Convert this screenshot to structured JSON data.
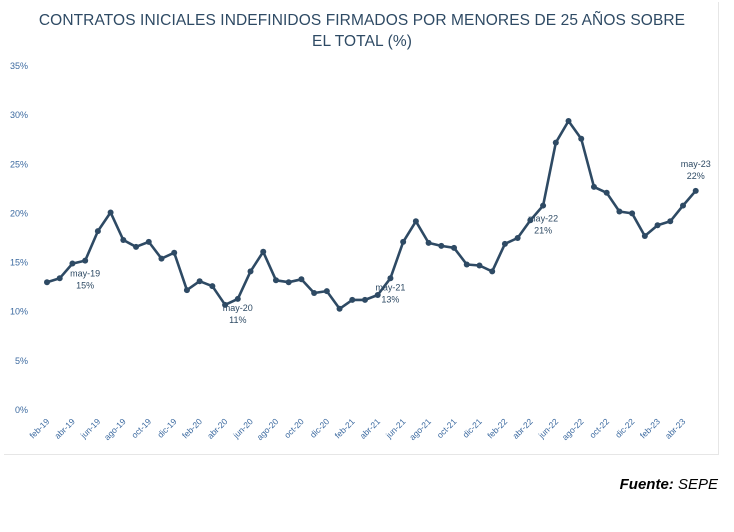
{
  "chart_data": {
    "type": "line",
    "title_lines": [
      "CONTRATOS INICIALES INDEFINIDOS FIRMADOS POR MENORES DE 25 AÑOS SOBRE",
      "EL TOTAL (%)"
    ],
    "xlabel": "",
    "ylabel": "",
    "ylim": [
      0,
      35
    ],
    "y_ticks": [
      "0%",
      "5%",
      "10%",
      "15%",
      "20%",
      "25%",
      "30%",
      "35%"
    ],
    "x_tick_labels": [
      "feb-19",
      "abr-19",
      "jun-19",
      "ago-19",
      "oct-19",
      "dic-19",
      "feb-20",
      "abr-20",
      "jun-20",
      "ago-20",
      "oct-20",
      "dic-20",
      "feb-21",
      "abr-21",
      "jun-21",
      "ago-21",
      "oct-21",
      "dic-21",
      "feb-22",
      "abr-22",
      "jun-22",
      "ago-22",
      "oct-22",
      "dic-22",
      "feb-23",
      "abr-23"
    ],
    "categories": [
      "feb-19",
      "mar-19",
      "abr-19",
      "may-19",
      "jun-19",
      "jul-19",
      "ago-19",
      "sep-19",
      "oct-19",
      "nov-19",
      "dic-19",
      "ene-20",
      "feb-20",
      "mar-20",
      "abr-20",
      "may-20",
      "jun-20",
      "jul-20",
      "ago-20",
      "sep-20",
      "oct-20",
      "nov-20",
      "dic-20",
      "ene-21",
      "feb-21",
      "mar-21",
      "abr-21",
      "may-21",
      "jun-21",
      "jul-21",
      "ago-21",
      "sep-21",
      "oct-21",
      "nov-21",
      "dic-21",
      "ene-22",
      "feb-22",
      "mar-22",
      "abr-22",
      "may-22",
      "jun-22",
      "jul-22",
      "ago-22",
      "sep-22",
      "oct-22",
      "nov-22",
      "dic-22",
      "ene-23",
      "feb-23",
      "mar-23",
      "abr-23",
      "may-23"
    ],
    "series": [
      {
        "name": "Contratos iniciales indefinidos <25 años (%)",
        "color": "#2e4a64",
        "values": [
          13.0,
          13.4,
          14.9,
          15.2,
          18.2,
          20.1,
          17.3,
          16.6,
          17.1,
          15.4,
          16.0,
          12.2,
          13.1,
          12.6,
          10.7,
          11.3,
          14.1,
          16.1,
          13.2,
          13.0,
          13.3,
          11.9,
          12.1,
          10.3,
          11.2,
          11.2,
          11.7,
          13.4,
          17.1,
          19.2,
          17.0,
          16.7,
          16.5,
          14.8,
          14.7,
          14.1,
          16.9,
          17.5,
          19.3,
          20.8,
          27.2,
          29.4,
          27.6,
          22.7,
          22.1,
          20.2,
          20.0,
          17.7,
          18.8,
          19.2,
          20.8,
          22.3
        ]
      }
    ],
    "annotations": [
      {
        "category": "may-19",
        "label": "may-19",
        "value_label": "15%"
      },
      {
        "category": "may-20",
        "label": "may-20",
        "value_label": "11%"
      },
      {
        "category": "may-21",
        "label": "may-21",
        "value_label": "13%"
      },
      {
        "category": "may-22",
        "label": "may-22",
        "value_label": "21%"
      },
      {
        "category": "may-23",
        "label": "may-23",
        "value_label": "22%"
      }
    ],
    "grid": false,
    "legend": "none"
  },
  "source": {
    "label": "Fuente:",
    "value": "SEPE"
  }
}
